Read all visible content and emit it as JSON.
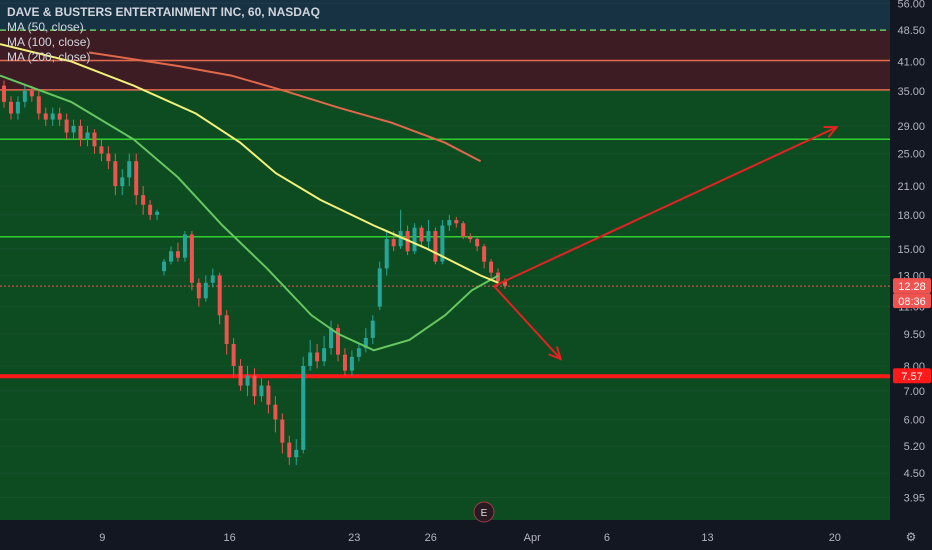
{
  "header": {
    "title": "DAVE & BUSTERS ENTERTAINMENT INC, 60, NASDAQ",
    "indicators": [
      "MA (50, close)",
      "MA (100, close)",
      "MA (200, close)"
    ]
  },
  "colors": {
    "background": "#131722",
    "zone_dark_blue": "#173343",
    "zone_dark_red": "#3d1c24",
    "zone_green": "#0d4b21",
    "candle_up": "#26a69a",
    "candle_down": "#ef5350",
    "ma50": "#66c760",
    "ma100": "#f2f27a",
    "ma200": "#e0694a",
    "support": "#ff1a1a",
    "resistance": "#33cc33",
    "arrow": "#e52222",
    "axis_text": "#b2b5be"
  },
  "price_badges": {
    "last_price": "12.28",
    "countdown": "08:36",
    "support": "7.57"
  },
  "event_marker": "E",
  "chart_data": {
    "type": "candlestick",
    "title": "DAVE & BUSTERS ENTERTAINMENT INC, 60, NASDAQ",
    "y_scale": "log",
    "ylim": [
      3.5,
      57
    ],
    "y_ticks": [
      "56.00",
      "48.50",
      "41.00",
      "35.00",
      "29.00",
      "25.00",
      "21.00",
      "18.00",
      "15.00",
      "13.00",
      "11.00",
      "9.50",
      "8.00",
      "7.00",
      "6.00",
      "5.20",
      "4.50",
      "3.95"
    ],
    "x_ticks": [
      "9",
      "16",
      "23",
      "26",
      "Apr",
      "6",
      "13",
      "20"
    ],
    "horizontal_levels": [
      {
        "price": 48.5,
        "style": "dashed",
        "color": "#66c760"
      },
      {
        "price": 41.2,
        "style": "solid",
        "color": "#e0694a"
      },
      {
        "price": 35.2,
        "style": "solid",
        "color": "#e0694a"
      },
      {
        "price": 27.0,
        "style": "solid",
        "color": "#33cc33"
      },
      {
        "price": 16.0,
        "style": "solid",
        "color": "#33cc33"
      },
      {
        "price": 12.28,
        "style": "dotted",
        "color": "#ef5350"
      },
      {
        "price": 7.57,
        "style": "solid",
        "color": "#ff1a1a"
      }
    ],
    "zones": [
      {
        "from": 48.5,
        "to": 57,
        "color": "#173343"
      },
      {
        "from": 35.2,
        "to": 48.5,
        "color": "#3d1c24"
      },
      {
        "from": 3.5,
        "to": 35.2,
        "color": "#0d4b21"
      }
    ],
    "moving_averages": [
      {
        "name": "MA (50, close)",
        "points": [
          [
            0,
            38
          ],
          [
            0.08,
            33
          ],
          [
            0.15,
            27
          ],
          [
            0.2,
            22
          ],
          [
            0.25,
            17
          ],
          [
            0.3,
            13.5
          ],
          [
            0.35,
            10.5
          ],
          [
            0.38,
            9.5
          ],
          [
            0.42,
            8.7
          ],
          [
            0.46,
            9.2
          ],
          [
            0.5,
            10.5
          ],
          [
            0.53,
            12.0
          ],
          [
            0.56,
            13.0
          ]
        ]
      },
      {
        "name": "MA (100, close)",
        "points": [
          [
            0,
            45
          ],
          [
            0.08,
            41
          ],
          [
            0.15,
            36
          ],
          [
            0.22,
            31
          ],
          [
            0.27,
            26.5
          ],
          [
            0.31,
            22.5
          ],
          [
            0.36,
            19.5
          ],
          [
            0.42,
            17.0
          ],
          [
            0.48,
            15.0
          ],
          [
            0.54,
            13.0
          ],
          [
            0.56,
            12.5
          ]
        ]
      },
      {
        "name": "MA (200, close)",
        "points": [
          [
            0.1,
            43
          ],
          [
            0.2,
            40
          ],
          [
            0.26,
            38
          ],
          [
            0.32,
            35
          ],
          [
            0.38,
            32
          ],
          [
            0.44,
            29.5
          ],
          [
            0.5,
            26.5
          ],
          [
            0.54,
            24.0
          ]
        ]
      }
    ],
    "arrows": [
      {
        "from": [
          0.555,
          12.28
        ],
        "to": [
          0.94,
          28.8
        ]
      },
      {
        "from": [
          0.555,
          12.28
        ],
        "to": [
          0.63,
          8.3
        ]
      }
    ],
    "candles": [
      [
        36,
        33,
        37,
        32
      ],
      [
        33,
        31,
        34,
        30
      ],
      [
        31,
        33,
        34,
        30
      ],
      [
        33,
        35,
        36,
        32
      ],
      [
        35,
        34,
        36,
        33
      ],
      [
        34,
        31,
        35,
        30
      ],
      [
        31,
        30,
        32,
        29
      ],
      [
        30,
        31,
        32,
        29
      ],
      [
        31,
        30,
        32,
        29
      ],
      [
        30,
        28,
        31,
        27
      ],
      [
        28,
        29,
        30,
        27
      ],
      [
        29,
        27,
        30,
        26
      ],
      [
        27,
        28,
        29,
        26
      ],
      [
        28,
        26,
        28.5,
        25
      ],
      [
        26,
        25,
        27,
        24
      ],
      [
        25,
        24,
        26,
        23
      ],
      [
        24,
        21,
        25,
        20
      ],
      [
        21,
        22,
        23,
        20
      ],
      [
        22,
        24,
        25,
        21
      ],
      [
        24,
        20,
        25,
        19
      ],
      [
        20,
        19,
        21,
        18
      ],
      [
        19,
        18,
        19.5,
        17.5
      ],
      [
        18,
        18.3,
        18.5,
        17.5
      ],
      [
        13.3,
        14.0,
        14.2,
        13.0
      ],
      [
        14.0,
        14.8,
        15.2,
        13.8
      ],
      [
        14.8,
        14.3,
        15.5,
        14.0
      ],
      [
        14.3,
        16.2,
        16.5,
        14.0
      ],
      [
        16.2,
        12.5,
        16.5,
        12.0
      ],
      [
        12.5,
        11.5,
        12.8,
        11.0
      ],
      [
        11.5,
        12.5,
        13.0,
        11.3
      ],
      [
        12.5,
        13.0,
        13.5,
        12.2
      ],
      [
        13.0,
        10.5,
        13.2,
        10.0
      ],
      [
        10.5,
        9.0,
        10.8,
        8.5
      ],
      [
        9.0,
        8.0,
        9.3,
        7.5
      ],
      [
        8.0,
        7.2,
        8.3,
        7.0
      ],
      [
        7.2,
        7.6,
        8.0,
        6.8
      ],
      [
        7.6,
        6.8,
        7.9,
        6.5
      ],
      [
        6.8,
        7.2,
        7.5,
        6.6
      ],
      [
        7.2,
        6.5,
        7.4,
        6.2
      ],
      [
        6.5,
        6.0,
        6.8,
        5.6
      ],
      [
        6.0,
        5.3,
        6.2,
        5.0
      ],
      [
        5.3,
        4.9,
        5.5,
        4.7
      ],
      [
        4.9,
        5.1,
        5.4,
        4.7
      ],
      [
        5.1,
        8.0,
        8.4,
        5.0
      ],
      [
        8.0,
        8.6,
        9.2,
        7.8
      ],
      [
        8.6,
        8.2,
        9.0,
        7.9
      ],
      [
        8.2,
        8.8,
        9.4,
        8.0
      ],
      [
        8.8,
        9.8,
        10.2,
        8.5
      ],
      [
        9.8,
        8.5,
        10.0,
        8.2
      ],
      [
        8.5,
        7.8,
        8.8,
        7.6
      ],
      [
        7.8,
        8.4,
        8.7,
        7.6
      ],
      [
        8.4,
        8.8,
        9.0,
        8.2
      ],
      [
        8.8,
        9.3,
        9.8,
        8.6
      ],
      [
        9.3,
        10.2,
        10.5,
        9.0
      ],
      [
        11.0,
        13.5,
        14.0,
        10.8
      ],
      [
        13.5,
        15.8,
        16.5,
        13.0
      ],
      [
        15.8,
        15.2,
        16.5,
        14.8
      ],
      [
        15.2,
        16.5,
        18.5,
        15.0
      ],
      [
        16.5,
        14.8,
        17.0,
        14.5
      ],
      [
        14.8,
        16.8,
        17.2,
        14.6
      ],
      [
        16.8,
        15.6,
        17.0,
        15.2
      ],
      [
        15.6,
        16.5,
        17.5,
        15.0
      ],
      [
        16.5,
        14.0,
        16.8,
        13.8
      ],
      [
        14.0,
        17.0,
        17.5,
        13.8
      ],
      [
        17.0,
        17.5,
        18.0,
        16.5
      ],
      [
        17.5,
        17.2,
        17.8,
        16.8
      ],
      [
        17.2,
        16.0,
        17.4,
        15.8
      ],
      [
        16.0,
        15.8,
        16.3,
        15.5
      ],
      [
        15.8,
        15.2,
        16.0,
        14.8
      ],
      [
        15.2,
        14.0,
        15.4,
        13.5
      ],
      [
        14.0,
        13.2,
        14.2,
        12.8
      ],
      [
        13.2,
        12.6,
        13.5,
        12.3
      ],
      [
        12.6,
        12.3,
        12.8,
        12.1
      ]
    ]
  }
}
